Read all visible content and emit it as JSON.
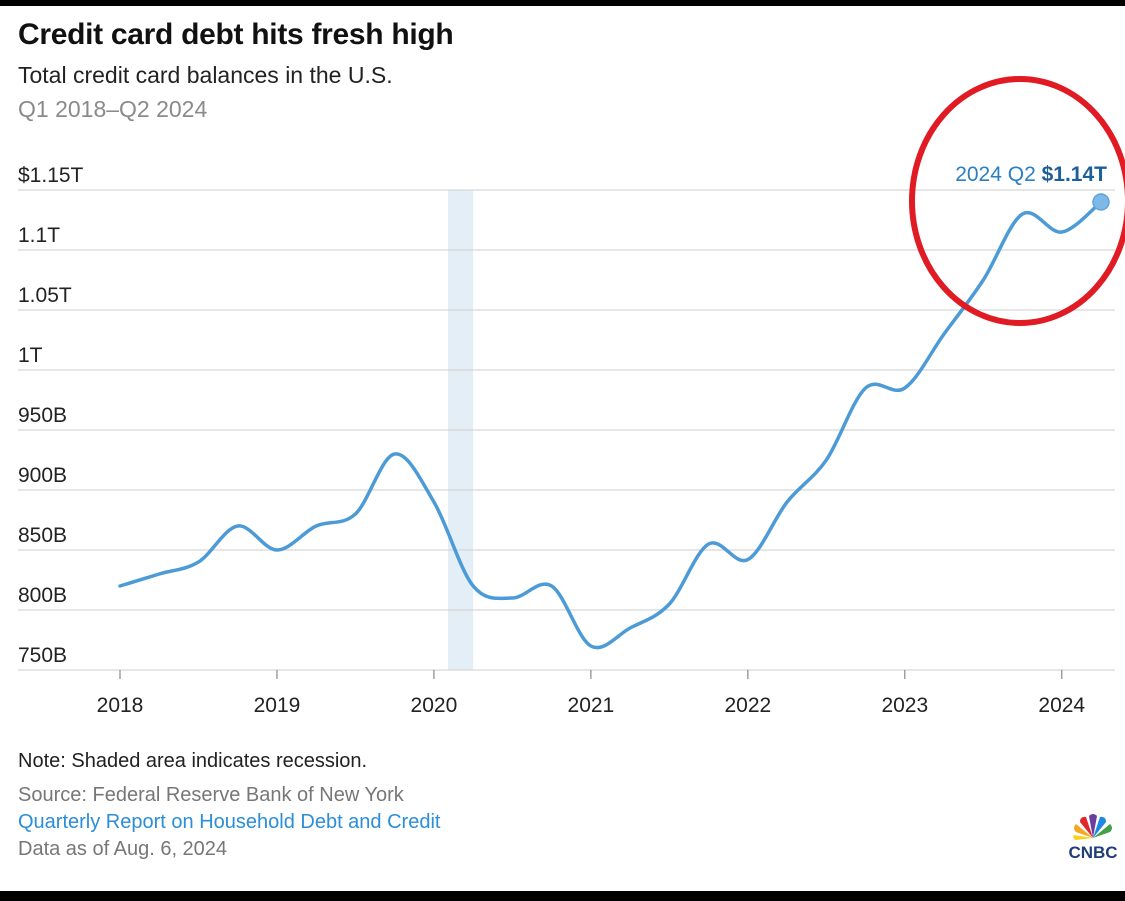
{
  "header": {
    "title": "Credit card debt hits fresh high",
    "subtitle": "Total credit card balances in the U.S.",
    "date_range": "Q1 2018–Q2 2024"
  },
  "footer": {
    "note": "Note: Shaded area indicates recession.",
    "source": "Source: Federal Reserve Bank of New York",
    "report_link": "Quarterly Report on Household Debt and Credit",
    "data_as_of": "Data as of Aug. 6, 2024"
  },
  "logo": {
    "text": "CNBC",
    "icon": "peacock-icon"
  },
  "chart_data": {
    "type": "line",
    "title": "Credit card debt hits fresh high",
    "ylabel": "",
    "xlabel": "",
    "ylim": [
      750,
      1150
    ],
    "xlim": [
      2018,
      2024.5
    ],
    "yticks": [
      {
        "value": 1150,
        "label": "$1.15T"
      },
      {
        "value": 1100,
        "label": "1.1T"
      },
      {
        "value": 1050,
        "label": "1.05T"
      },
      {
        "value": 1000,
        "label": "1T"
      },
      {
        "value": 950,
        "label": "950B"
      },
      {
        "value": 900,
        "label": "900B"
      },
      {
        "value": 850,
        "label": "850B"
      },
      {
        "value": 800,
        "label": "800B"
      },
      {
        "value": 750,
        "label": "750B"
      }
    ],
    "xticks": [
      "2018",
      "2019",
      "2020",
      "2021",
      "2022",
      "2023",
      "2024"
    ],
    "grid": true,
    "color": "#4c9bd6",
    "recession": {
      "start": 2020.09,
      "end": 2020.25
    },
    "series": [
      {
        "x": [
          2018.0,
          2018.25,
          2018.5,
          2018.75,
          2019.0,
          2019.25,
          2019.5,
          2019.75,
          2020.0,
          2020.25,
          2020.5,
          2020.75,
          2021.0,
          2021.25,
          2021.5,
          2021.75,
          2022.0,
          2022.25,
          2022.5,
          2022.75,
          2023.0,
          2023.25,
          2023.5,
          2023.75,
          2024.0,
          2024.25
        ],
        "values": [
          820,
          830,
          840,
          870,
          850,
          870,
          880,
          930,
          890,
          820,
          810,
          820,
          770,
          785,
          805,
          855,
          842,
          890,
          925,
          985,
          985,
          1030,
          1075,
          1130,
          1115,
          1140
        ]
      }
    ],
    "annotation": {
      "label": "2024 Q2",
      "value_label": "$1.14T",
      "x": 2024.25,
      "y": 1140
    }
  }
}
